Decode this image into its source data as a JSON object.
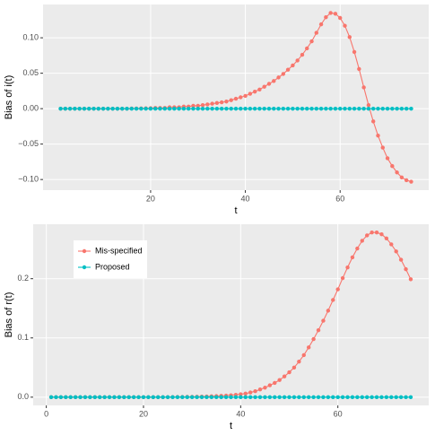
{
  "chart_data": [
    {
      "type": "line",
      "x_label": "t",
      "y_label": "Bias of i(t)",
      "x": [
        1,
        2,
        3,
        4,
        5,
        6,
        7,
        8,
        9,
        10,
        11,
        12,
        13,
        14,
        15,
        16,
        17,
        18,
        19,
        20,
        21,
        22,
        23,
        24,
        25,
        26,
        27,
        28,
        29,
        30,
        31,
        32,
        33,
        34,
        35,
        36,
        37,
        38,
        39,
        40,
        41,
        42,
        43,
        44,
        45,
        46,
        47,
        48,
        49,
        50,
        51,
        52,
        53,
        54,
        55,
        56,
        57,
        58,
        59,
        60,
        61,
        62,
        63,
        64,
        65,
        66,
        67,
        68,
        69,
        70,
        71,
        72,
        73,
        74,
        75
      ],
      "series": [
        {
          "name": "Mis-specified",
          "color": "#F8766D",
          "values": [
            0,
            0,
            0,
            0,
            0,
            0,
            0,
            0,
            0,
            0,
            0,
            0,
            0,
            0,
            0,
            0.0002,
            0.0003,
            0.0004,
            0.0005,
            0.0007,
            0.001,
            0.001,
            0.001,
            0.002,
            0.002,
            0.002,
            0.003,
            0.003,
            0.004,
            0.004,
            0.005,
            0.006,
            0.007,
            0.008,
            0.009,
            0.01,
            0.012,
            0.014,
            0.016,
            0.018,
            0.021,
            0.024,
            0.027,
            0.031,
            0.035,
            0.039,
            0.044,
            0.049,
            0.055,
            0.061,
            0.068,
            0.076,
            0.085,
            0.095,
            0.107,
            0.119,
            0.129,
            0.135,
            0.134,
            0.128,
            0.117,
            0.101,
            0.08,
            0.056,
            0.03,
            0.005,
            -0.018,
            -0.038,
            -0.055,
            -0.07,
            -0.081,
            -0.09,
            -0.097,
            -0.101,
            -0.103
          ]
        },
        {
          "name": "Proposed",
          "color": "#00BFC4",
          "values": [
            0,
            0,
            0,
            0,
            0,
            0,
            0,
            0,
            0,
            0,
            0,
            0,
            0,
            0,
            0,
            0,
            0,
            0,
            0,
            0,
            0,
            0,
            0,
            0,
            0,
            0,
            0,
            0,
            0,
            0,
            0,
            0,
            0,
            0,
            0,
            0,
            0,
            0,
            0,
            0,
            0,
            0,
            0,
            0,
            0,
            0,
            0,
            0,
            0,
            0,
            0,
            0,
            0,
            0,
            0,
            0,
            0,
            0,
            0,
            0,
            0,
            0,
            0,
            0,
            0,
            0,
            0,
            0,
            0,
            0,
            0,
            0,
            0,
            0,
            0
          ]
        }
      ],
      "xlim": [
        -2.7,
        78.7
      ],
      "xticks": [
        20,
        40,
        60
      ],
      "ylim": [
        -0.115,
        0.147
      ],
      "yticks": [
        {
          "value": -0.1,
          "label": "−0.10"
        },
        {
          "value": -0.05,
          "label": "−0.05"
        },
        {
          "value": 0,
          "label": "0.00"
        },
        {
          "value": 0.05,
          "label": "0.05"
        },
        {
          "value": 0.1,
          "label": "0.10"
        }
      ],
      "grid": true,
      "legend": false
    },
    {
      "type": "line",
      "x_label": "t",
      "y_label": "Bias of r(t)",
      "x": [
        1,
        2,
        3,
        4,
        5,
        6,
        7,
        8,
        9,
        10,
        11,
        12,
        13,
        14,
        15,
        16,
        17,
        18,
        19,
        20,
        21,
        22,
        23,
        24,
        25,
        26,
        27,
        28,
        29,
        30,
        31,
        32,
        33,
        34,
        35,
        36,
        37,
        38,
        39,
        40,
        41,
        42,
        43,
        44,
        45,
        46,
        47,
        48,
        49,
        50,
        51,
        52,
        53,
        54,
        55,
        56,
        57,
        58,
        59,
        60,
        61,
        62,
        63,
        64,
        65,
        66,
        67,
        68,
        69,
        70,
        71,
        72,
        73,
        74,
        75
      ],
      "series": [
        {
          "name": "Mis-specified",
          "color": "#F8766D",
          "values": [
            0,
            0,
            0,
            0,
            0,
            0,
            0,
            0,
            0,
            0,
            0,
            0,
            0,
            0,
            0,
            0,
            0,
            0,
            0,
            0,
            0,
            0,
            0,
            0,
            0,
            0.0002,
            0.0003,
            0.0004,
            0.0005,
            0.0006,
            0.0008,
            0.001,
            0.0012,
            0.0015,
            0.0018,
            0.0022,
            0.0027,
            0.0033,
            0.004,
            0.005,
            0.006,
            0.008,
            0.01,
            0.013,
            0.016,
            0.02,
            0.024,
            0.029,
            0.035,
            0.042,
            0.05,
            0.06,
            0.071,
            0.084,
            0.098,
            0.113,
            0.129,
            0.146,
            0.164,
            0.182,
            0.201,
            0.219,
            0.236,
            0.251,
            0.264,
            0.273,
            0.278,
            0.278,
            0.275,
            0.268,
            0.258,
            0.246,
            0.232,
            0.216,
            0.199
          ]
        },
        {
          "name": "Proposed",
          "color": "#00BFC4",
          "values": [
            0,
            0,
            0,
            0,
            0,
            0,
            0,
            0,
            0,
            0,
            0,
            0,
            0,
            0,
            0,
            0,
            0,
            0,
            0,
            0,
            0,
            0,
            0,
            0,
            0,
            0,
            0,
            0,
            0,
            0,
            0,
            0,
            0,
            0,
            0,
            0,
            0,
            0,
            0,
            0,
            0,
            0,
            0,
            0,
            0,
            0,
            0,
            0,
            0,
            0,
            0,
            0,
            0,
            0,
            0,
            0,
            0,
            0,
            0,
            0,
            0,
            0,
            0,
            0,
            0,
            0,
            0,
            0,
            0,
            0,
            0,
            0,
            0,
            0,
            0
          ]
        }
      ],
      "xlim": [
        -2.7,
        78.7
      ],
      "xticks": [
        0,
        20,
        40,
        60
      ],
      "ylim": [
        -0.0139,
        0.2919
      ],
      "yticks": [
        {
          "value": 0,
          "label": "0.0"
        },
        {
          "value": 0.1,
          "label": "0.1"
        },
        {
          "value": 0.2,
          "label": "0.2"
        }
      ],
      "grid": true,
      "legend": true
    }
  ]
}
